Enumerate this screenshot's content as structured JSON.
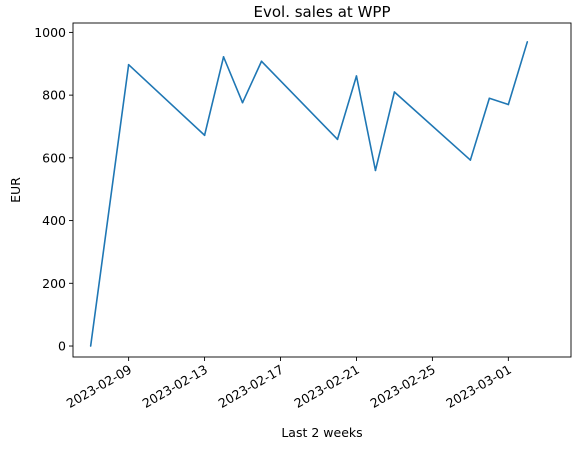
{
  "chart_data": {
    "type": "line",
    "title": "Evol. sales at WPP",
    "xlabel": "Last 2 weeks",
    "ylabel": "EUR",
    "x_type": "date",
    "xlim": [
      "2023-02-06",
      "2023-03-04"
    ],
    "ylim": [
      -35,
      1030
    ],
    "x_ticks": [
      "2023-02-09",
      "2023-02-13",
      "2023-02-17",
      "2023-02-21",
      "2023-02-25",
      "2023-03-01"
    ],
    "y_ticks": [
      0,
      200,
      400,
      600,
      800,
      1000
    ],
    "grid": false,
    "legend": false,
    "colors": {
      "line": "#1f77b4",
      "axes": "#000000",
      "background": "#ffffff"
    },
    "series": [
      {
        "x": [
          "2023-02-07",
          "2023-02-09",
          "2023-02-13",
          "2023-02-14",
          "2023-02-15",
          "2023-02-16",
          "2023-02-20",
          "2023-02-21",
          "2023-02-22",
          "2023-02-23",
          "2023-02-27",
          "2023-02-28",
          "2023-03-01",
          "2023-03-02"
        ],
        "values": [
          0,
          897,
          672,
          922,
          776,
          908,
          659,
          861,
          560,
          810,
          593,
          790,
          770,
          970
        ]
      }
    ]
  }
}
